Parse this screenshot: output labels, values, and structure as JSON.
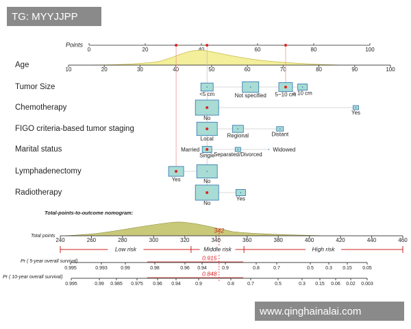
{
  "watermark_top": "TG: MYYJJPP",
  "watermark_bottom": "www.qinghainalai.com",
  "chart_data": {
    "type": "nomogram",
    "points_axis": {
      "label": "Points",
      "xlim": [
        0,
        100
      ],
      "xticks": [
        0,
        20,
        40,
        60,
        80,
        100
      ]
    },
    "age": {
      "label": "Age",
      "xlim": [
        10,
        100
      ],
      "xticks": [
        10,
        20,
        30,
        40,
        50,
        60,
        70,
        80,
        90,
        100
      ]
    },
    "variables": [
      {
        "label": "Tumor Size",
        "levels": [
          "<5 cm",
          "Not specified",
          "5~10 cm",
          "≥ 10 cm"
        ],
        "points": [
          42,
          57.5,
          70,
          76
        ]
      },
      {
        "label": "Chemotherapy",
        "levels": [
          "No",
          "Yes"
        ],
        "points": [
          42,
          95
        ]
      },
      {
        "label": "FIGO criteria-based tumor staging",
        "levels": [
          "Local",
          "Regional",
          "Distant"
        ],
        "points": [
          42,
          53,
          68
        ]
      },
      {
        "label": "Marital status",
        "levels": [
          "Married",
          "Single",
          "Separated/Divorced",
          "Widowed"
        ],
        "points": [
          42,
          42,
          53,
          64
        ]
      },
      {
        "label": "Lymphadenectomy",
        "levels": [
          "Yes",
          "No"
        ],
        "points": [
          31,
          42
        ]
      },
      {
        "label": "Radiotherapy",
        "levels": [
          "No",
          "Yes"
        ],
        "points": [
          42,
          54
        ]
      }
    ],
    "total_title": "Total-points-to-outcome nomogram:",
    "total_axis": {
      "label": "Total points",
      "xlim": [
        240,
        460
      ],
      "xticks": [
        240,
        260,
        280,
        300,
        320,
        340,
        360,
        380,
        400,
        420,
        440,
        460
      ]
    },
    "total_value": 342,
    "risk_groups": [
      "Low risk",
      "Middle risk",
      "High risk"
    ],
    "risk_cutoffs": [
      324,
      358
    ],
    "survival": [
      {
        "label": "Pr ( 5-year overall survival)",
        "ticks": [
          0.995,
          0.993,
          0.99,
          0.98,
          0.96,
          0.94,
          0.9,
          0.8,
          0.7,
          0.5,
          0.3,
          0.15,
          0.05
        ],
        "value": 0.915
      },
      {
        "label": "Pr ( 10-year overall survival)",
        "ticks": [
          0.995,
          0.99,
          0.985,
          0.975,
          0.96,
          0.94,
          0.9,
          0.8,
          0.7,
          0.5,
          0.3,
          0.15,
          0.06,
          0.02,
          0.003
        ],
        "value": 0.848
      }
    ]
  }
}
